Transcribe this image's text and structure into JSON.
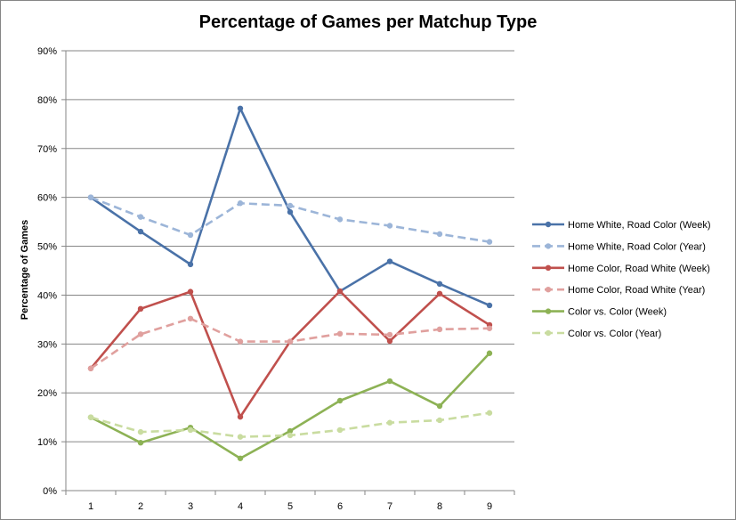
{
  "chart_data": {
    "type": "line",
    "title": "Percentage of Games per Matchup Type",
    "xlabel": "",
    "ylabel": "Percentage of Games",
    "x": [
      1,
      2,
      3,
      4,
      5,
      6,
      7,
      8,
      9
    ],
    "x_tick_labels": [
      "1",
      "2",
      "3",
      "4",
      "5",
      "6",
      "7",
      "8",
      "9"
    ],
    "ylim": [
      0,
      90
    ],
    "y_tick_values": [
      0,
      10,
      20,
      30,
      40,
      50,
      60,
      70,
      80,
      90
    ],
    "y_tick_labels": [
      "0%",
      "10%",
      "20%",
      "30%",
      "40%",
      "50%",
      "60%",
      "70%",
      "80%",
      "90%"
    ],
    "grid": "horizontal",
    "legend_position": "right",
    "series": [
      {
        "name": "Home White, Road Color (Week)",
        "color": "#4A72A8",
        "dashed": false,
        "values": [
          60,
          53,
          46.3,
          78.2,
          57,
          40.8,
          46.9,
          42.3,
          37.9
        ]
      },
      {
        "name": "Home White, Road Color (Year)",
        "color": "#9CB5D8",
        "dashed": true,
        "values": [
          60,
          56,
          52.3,
          58.8,
          58.3,
          55.5,
          54.2,
          52.5,
          50.9
        ]
      },
      {
        "name": "Home Color, Road White (Week)",
        "color": "#C0504D",
        "dashed": false,
        "values": [
          25,
          37.2,
          40.7,
          15.1,
          30.5,
          40.8,
          30.6,
          40.3,
          33.9
        ]
      },
      {
        "name": "Home Color, Road White (Year)",
        "color": "#E0A09E",
        "dashed": true,
        "values": [
          25,
          32,
          35.2,
          30.5,
          30.5,
          32.1,
          31.9,
          33,
          33.2
        ]
      },
      {
        "name": "Color vs. Color (Week)",
        "color": "#8DB255",
        "dashed": false,
        "values": [
          15,
          9.8,
          12.9,
          6.6,
          12.2,
          18.4,
          22.4,
          17.3,
          28.1
        ]
      },
      {
        "name": "Color vs. Color (Year)",
        "color": "#C9DCA0",
        "dashed": true,
        "values": [
          15,
          12,
          12.4,
          11,
          11.3,
          12.4,
          13.9,
          14.4,
          15.9
        ]
      }
    ]
  }
}
